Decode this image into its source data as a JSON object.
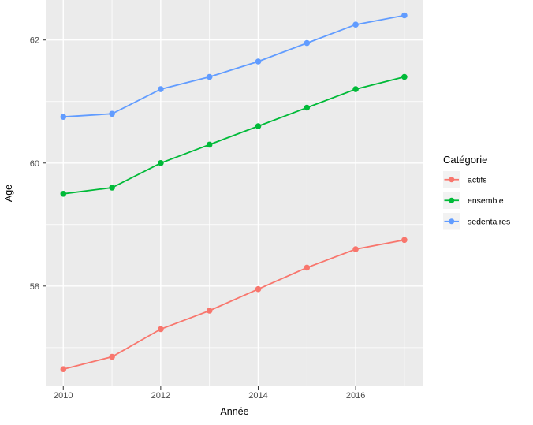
{
  "chart_data": {
    "type": "line",
    "title": "",
    "xlabel": "Année",
    "ylabel": "Age",
    "legend_title": "Catégorie",
    "legend_position": "right",
    "grid": true,
    "x": [
      2010,
      2011,
      2012,
      2013,
      2014,
      2015,
      2016,
      2017
    ],
    "series": [
      {
        "name": "actifs",
        "color": "#F8766D",
        "values": [
          56.65,
          56.85,
          57.3,
          57.6,
          57.95,
          58.3,
          58.6,
          58.75
        ]
      },
      {
        "name": "ensemble",
        "color": "#00BA38",
        "values": [
          59.5,
          59.6,
          60.0,
          60.3,
          60.6,
          60.9,
          61.2,
          61.4
        ]
      },
      {
        "name": "sedentaires",
        "color": "#619CFF",
        "values": [
          60.75,
          60.8,
          61.2,
          61.4,
          61.65,
          61.95,
          62.25,
          62.4
        ]
      }
    ],
    "x_ticks": [
      2010,
      2012,
      2014,
      2016
    ],
    "x_minor_ticks": [
      2011,
      2013,
      2015,
      2017
    ],
    "y_ticks": [
      58,
      60,
      62
    ],
    "y_minor_ticks": [
      57,
      59,
      61
    ],
    "xlim": [
      2009.64,
      2017.39
    ],
    "ylim": [
      56.37,
      62.65
    ],
    "colors": {
      "panel_background": "#EBEBEB",
      "gridline": "#FFFFFF",
      "legend_key_background": "#F2F2F2",
      "tick_label": "#4D4D4D",
      "tick_mark": "#333333"
    }
  }
}
